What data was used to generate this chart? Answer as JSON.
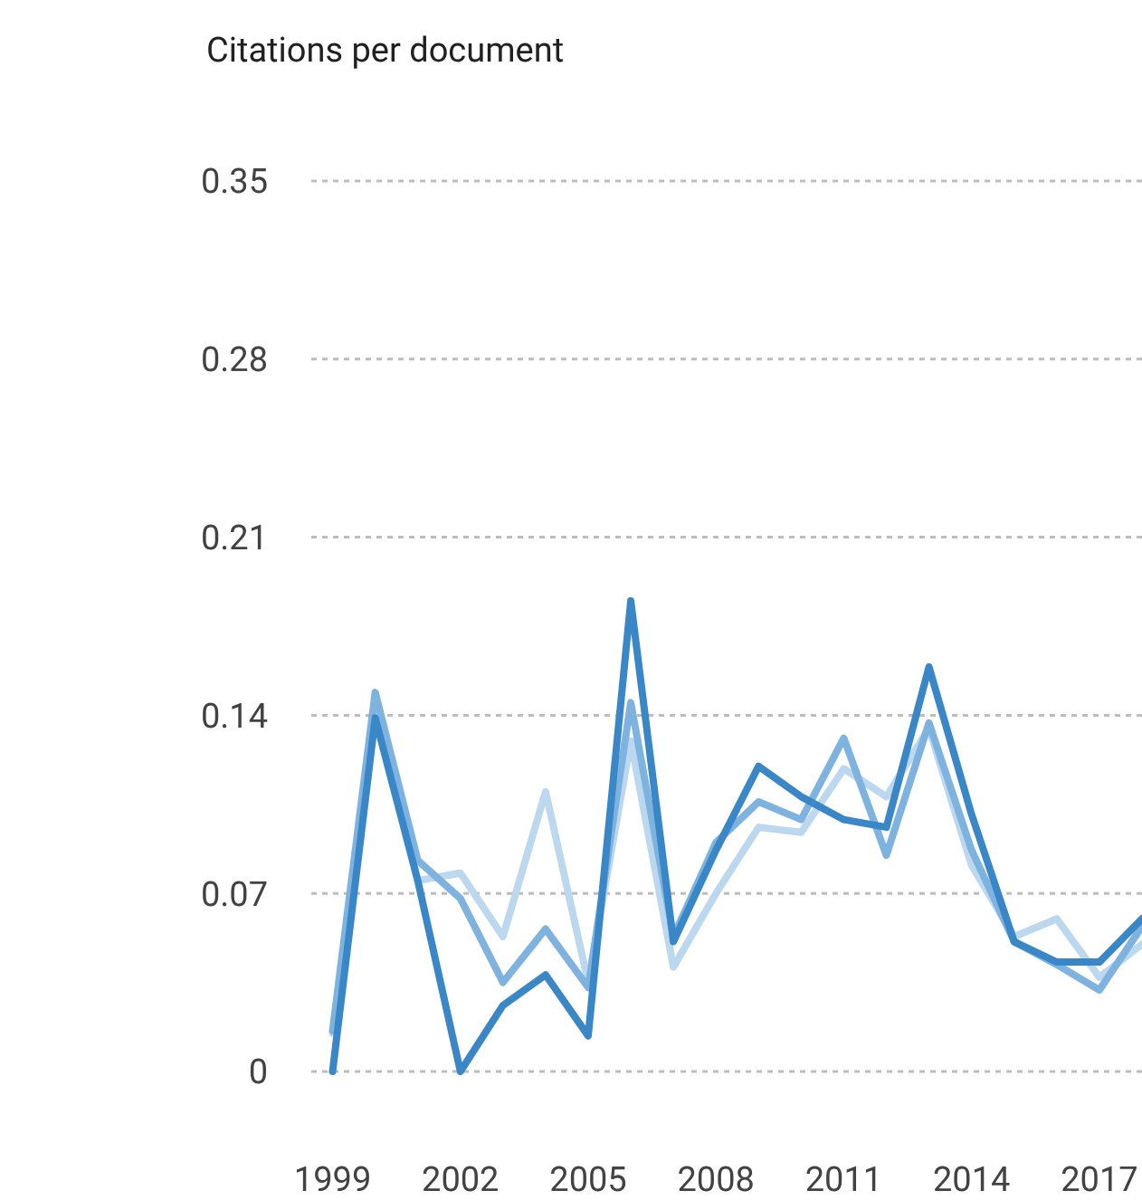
{
  "chart_data": {
    "type": "line",
    "title": "Citations per document",
    "x": [
      1999,
      2000,
      2001,
      2002,
      2003,
      2004,
      2005,
      2006,
      2007,
      2008,
      2009,
      2010,
      2011,
      2012,
      2013,
      2014,
      2015,
      2016,
      2017,
      2018
    ],
    "xlim": [
      1998.5,
      2018
    ],
    "xticks": [
      1999,
      2002,
      2005,
      2008,
      2011,
      2014,
      2017
    ],
    "ylim": [
      0,
      0.35
    ],
    "yticks": [
      0,
      0.07,
      0.14,
      0.21,
      0.28,
      0.35
    ],
    "grid": "y",
    "line_style": "solid",
    "marker": "none",
    "series": [
      {
        "color": "#bcd8ef",
        "values": [
          0.015,
          0.145,
          0.075,
          0.078,
          0.053,
          0.11,
          0.035,
          0.13,
          0.041,
          0.07,
          0.096,
          0.094,
          0.119,
          0.108,
          0.135,
          0.081,
          0.053,
          0.06,
          0.037,
          0.05
        ]
      },
      {
        "color": "#7eb3e0",
        "values": [
          0.016,
          0.149,
          0.083,
          0.068,
          0.035,
          0.056,
          0.033,
          0.145,
          0.053,
          0.09,
          0.106,
          0.099,
          0.131,
          0.085,
          0.137,
          0.087,
          0.051,
          0.042,
          0.032,
          0.057
        ]
      },
      {
        "color": "#3a87c8",
        "values": [
          0,
          0.139,
          0.075,
          0,
          0.026,
          0.038,
          0.014,
          0.185,
          0.051,
          0.087,
          0.12,
          0.108,
          0.099,
          0.096,
          0.159,
          0.101,
          0.051,
          0.043,
          0.043,
          0.06
        ]
      }
    ]
  }
}
